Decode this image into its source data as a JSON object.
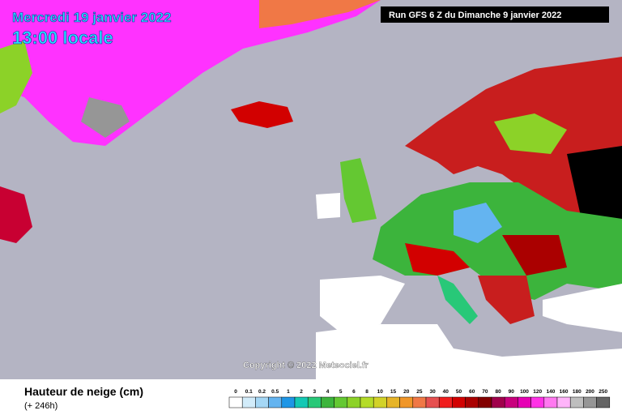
{
  "header": {
    "date": "Mercredi 19 janvier 2022",
    "time": "13:00 locale",
    "run": "Run GFS 6 Z du Dimanche 9 janvier 2022"
  },
  "copyright": "Copyright © 2022 Meteociel.fr",
  "legend": {
    "title": "Hauteur de neige (cm)",
    "subtitle": "(+ 246h)",
    "items": [
      {
        "label": "0",
        "color": "#ffffff"
      },
      {
        "label": "0.1",
        "color": "#d2ecfa"
      },
      {
        "label": "0.2",
        "color": "#a5d7f5"
      },
      {
        "label": "0.5",
        "color": "#64b4f0"
      },
      {
        "label": "1",
        "color": "#1e96e6"
      },
      {
        "label": "2",
        "color": "#14c8b4"
      },
      {
        "label": "3",
        "color": "#28c878"
      },
      {
        "label": "4",
        "color": "#3cb43c"
      },
      {
        "label": "5",
        "color": "#64c832"
      },
      {
        "label": "6",
        "color": "#8cd228"
      },
      {
        "label": "8",
        "color": "#b4dc28"
      },
      {
        "label": "10",
        "color": "#d2d228"
      },
      {
        "label": "15",
        "color": "#e6b428"
      },
      {
        "label": "20",
        "color": "#f09628"
      },
      {
        "label": "25",
        "color": "#f07846"
      },
      {
        "label": "30",
        "color": "#e65050"
      },
      {
        "label": "40",
        "color": "#f01e1e"
      },
      {
        "label": "50",
        "color": "#d20000"
      },
      {
        "label": "60",
        "color": "#aa0000"
      },
      {
        "label": "70",
        "color": "#820000"
      },
      {
        "label": "80",
        "color": "#a0004b"
      },
      {
        "label": "90",
        "color": "#c8007d"
      },
      {
        "label": "100",
        "color": "#e600b4"
      },
      {
        "label": "120",
        "color": "#ff32e6"
      },
      {
        "label": "140",
        "color": "#ff78f0"
      },
      {
        "label": "160",
        "color": "#ffb4fa"
      },
      {
        "label": "180",
        "color": "#bebebe"
      },
      {
        "label": "200",
        "color": "#969696"
      },
      {
        "label": "250",
        "color": "#646464"
      }
    ]
  }
}
